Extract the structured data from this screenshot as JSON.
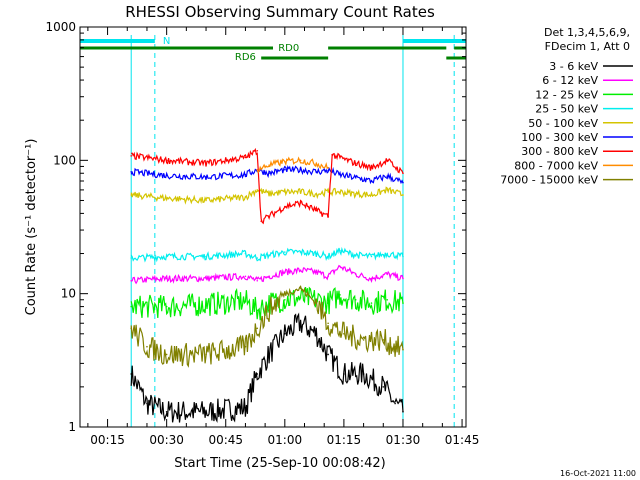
{
  "chart_data": {
    "type": "line",
    "title": "RHESSI Observing Summary Count Rates",
    "xlabel": "Start Time (25-Sep-10 00:08:42)",
    "ylabel": "Count Rate (s⁻¹ detector⁻¹)",
    "yscale": "log",
    "ylim": [
      1,
      1000
    ],
    "xlim_minutes_after_0008": [
      0,
      98
    ],
    "x_ticks": [
      "00:15",
      "00:30",
      "00:45",
      "01:00",
      "01:15",
      "01:30",
      "01:45"
    ],
    "y_ticks": [
      "1",
      "10",
      "100",
      "1000"
    ],
    "legend_header": [
      "Det 1,3,4,5,6,9,",
      "FDecim 1, Att 0"
    ],
    "legend_position": "right",
    "timestamp": "16-Oct-2021 11:00",
    "flags": {
      "night_label": "N",
      "rd0_label": "RD0",
      "rd6_label": "RD6",
      "night_color": "#00e5ee",
      "rd_color": "#008000"
    },
    "series": [
      {
        "name": "3 - 6 keV",
        "color": "#000000",
        "x": [
          "00:21",
          "00:25",
          "00:30",
          "00:40",
          "00:50",
          "00:53",
          "00:56",
          "01:00",
          "01:04",
          "01:08",
          "01:11",
          "01:15",
          "01:20",
          "01:25",
          "01:28",
          "01:30"
        ],
        "values": [
          2.5,
          1.5,
          1.3,
          1.3,
          1.4,
          2.5,
          3.5,
          5.0,
          6.0,
          5.0,
          3.5,
          2.5,
          2.5,
          2.0,
          1.5,
          1.3
        ]
      },
      {
        "name": "6 - 12 keV",
        "color": "#ff00ff",
        "x": [
          "00:21",
          "00:30",
          "00:40",
          "00:50",
          "00:53",
          "00:56",
          "01:00",
          "01:04",
          "01:08",
          "01:11",
          "01:14",
          "01:18",
          "01:22",
          "01:26",
          "01:30"
        ],
        "values": [
          12.5,
          13,
          13,
          13.5,
          12.5,
          13.5,
          14.5,
          15,
          14.5,
          13.5,
          16,
          14,
          13,
          14,
          13
        ]
      },
      {
        "name": "12 - 25 keV",
        "color": "#00ee00",
        "x": [
          "00:21",
          "00:30",
          "00:40",
          "00:50",
          "00:53",
          "00:56",
          "01:00",
          "01:04",
          "01:08",
          "01:11",
          "01:14",
          "01:18",
          "01:22",
          "01:26",
          "01:30"
        ],
        "values": [
          8,
          8,
          8.3,
          8.8,
          7.5,
          8.5,
          9,
          9.3,
          9,
          8.5,
          9.8,
          9,
          8.5,
          9,
          8.5
        ]
      },
      {
        "name": "25 - 50 keV",
        "color": "#00eeee",
        "x": [
          "00:21",
          "00:30",
          "00:40",
          "00:50",
          "00:53",
          "00:56",
          "01:00",
          "01:04",
          "01:08",
          "01:11",
          "01:14",
          "01:18",
          "01:22",
          "01:26",
          "01:30"
        ],
        "values": [
          18.5,
          19,
          19,
          20,
          18.5,
          19.5,
          20.5,
          20.5,
          20,
          19,
          21,
          19.5,
          19,
          20,
          19
        ]
      },
      {
        "name": "50 - 100 keV",
        "color": "#d4c400",
        "x": [
          "00:21",
          "00:30",
          "00:40",
          "00:50",
          "00:53",
          "00:56",
          "01:00",
          "01:04",
          "01:08",
          "01:11",
          "01:14",
          "01:18",
          "01:22",
          "01:26",
          "01:30"
        ],
        "values": [
          55,
          52,
          50,
          53,
          60,
          56,
          58,
          58,
          56,
          58,
          58,
          56,
          55,
          60,
          55
        ]
      },
      {
        "name": "100 - 300 keV",
        "color": "#0000ff",
        "x": [
          "00:21",
          "00:30",
          "00:40",
          "00:50",
          "00:53",
          "00:56",
          "01:00",
          "01:04",
          "01:08",
          "01:11",
          "01:14",
          "01:18",
          "01:22",
          "01:26",
          "01:30"
        ],
        "values": [
          82,
          77,
          75,
          78,
          85,
          80,
          85,
          85,
          82,
          84,
          78,
          74,
          70,
          76,
          68
        ]
      },
      {
        "name": "300 - 800 keV",
        "color": "#ff0000",
        "x": [
          "00:21",
          "00:30",
          "00:40",
          "00:50",
          "00:53",
          "00:54",
          "01:00",
          "01:04",
          "01:08",
          "01:11",
          "01:12",
          "01:18",
          "01:22",
          "01:26",
          "01:30"
        ],
        "values": [
          108,
          100,
          95,
          105,
          118,
          35,
          45,
          48,
          42,
          38,
          110,
          95,
          88,
          100,
          80
        ]
      },
      {
        "name": "800 - 7000 keV",
        "color": "#ff8c00",
        "x": [
          "00:53",
          "00:56",
          "01:00",
          "01:04",
          "01:08",
          "01:11"
        ],
        "values": [
          85,
          92,
          98,
          100,
          95,
          88
        ]
      },
      {
        "name": "7000 - 15000 keV",
        "color": "#808000",
        "x": [
          "00:21",
          "00:25",
          "00:30",
          "00:40",
          "00:50",
          "00:53",
          "00:56",
          "01:00",
          "01:04",
          "01:08",
          "01:11",
          "01:15",
          "01:20",
          "01:25",
          "01:28",
          "01:30"
        ],
        "values": [
          5.5,
          4.0,
          3.5,
          3.5,
          4.0,
          5.5,
          7.5,
          10,
          11,
          8.5,
          6.0,
          5.0,
          4.5,
          4.5,
          4.0,
          3.8
        ]
      }
    ]
  }
}
